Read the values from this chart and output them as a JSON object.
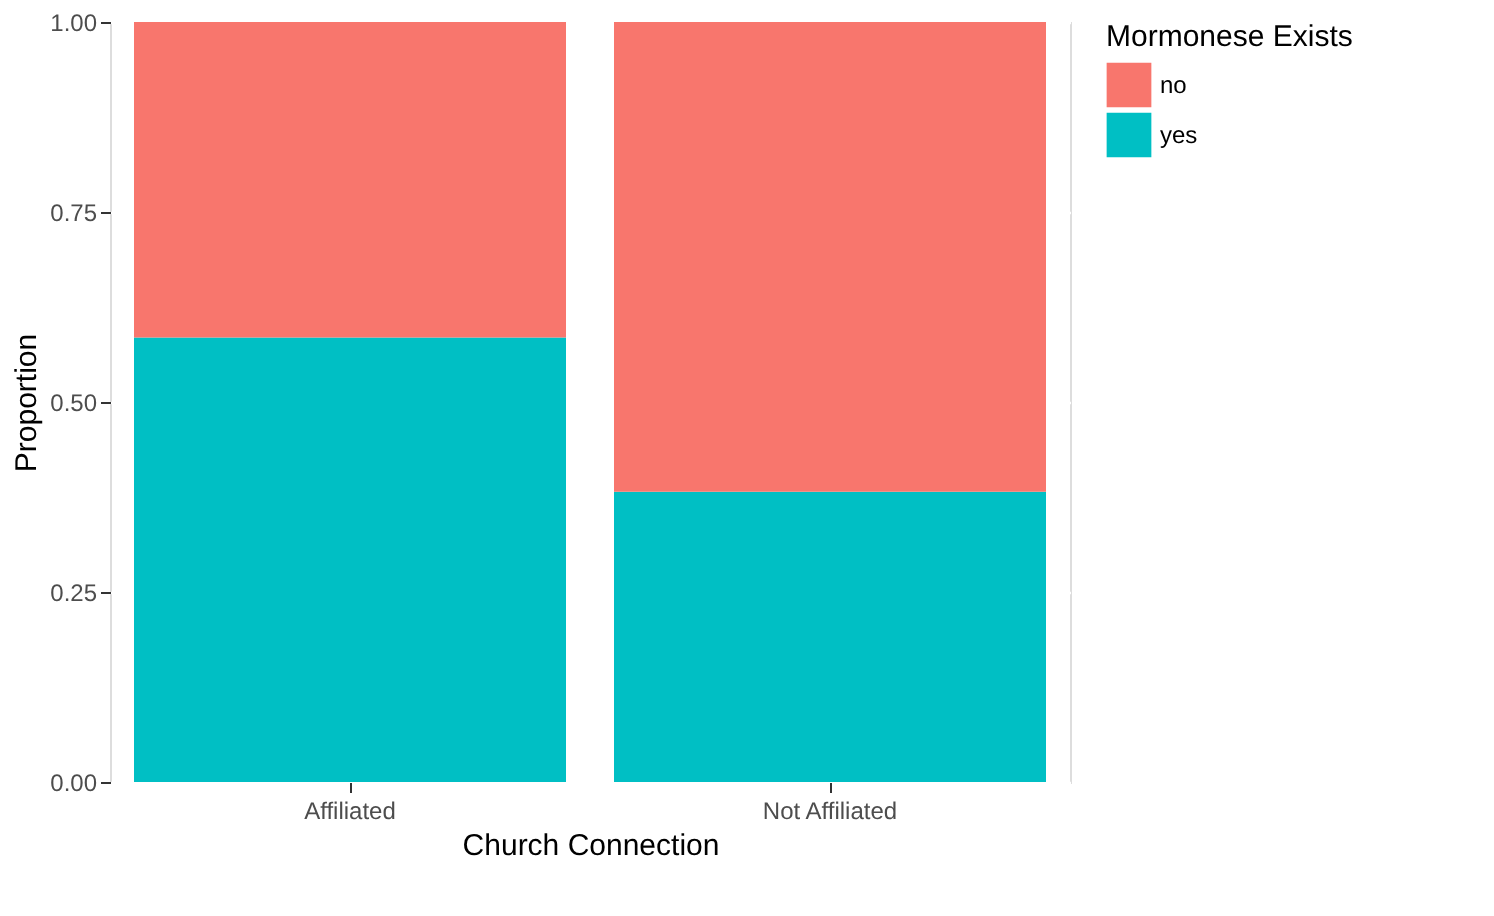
{
  "chart_data": {
    "type": "bar",
    "stacked": true,
    "xlabel": "Church Connection",
    "ylabel": "Proportion",
    "legend_title": "Mormonese Exists",
    "legend": "right",
    "categories": [
      "Affiliated",
      "Not Affiliated"
    ],
    "series": [
      {
        "name": "yes",
        "color": "#00bfc4",
        "values": [
          0.585,
          0.382
        ]
      },
      {
        "name": "no",
        "color": "#f8766d",
        "values": [
          0.415,
          0.618
        ]
      }
    ],
    "ylim": [
      0,
      1
    ],
    "yticks": [
      {
        "value": 0,
        "label": "0.00"
      },
      {
        "value": 0.25,
        "label": "0.25"
      },
      {
        "value": 0.5,
        "label": "0.50"
      },
      {
        "value": 0.75,
        "label": "0.75"
      },
      {
        "value": 1,
        "label": "1.00"
      }
    ],
    "grid": true
  }
}
